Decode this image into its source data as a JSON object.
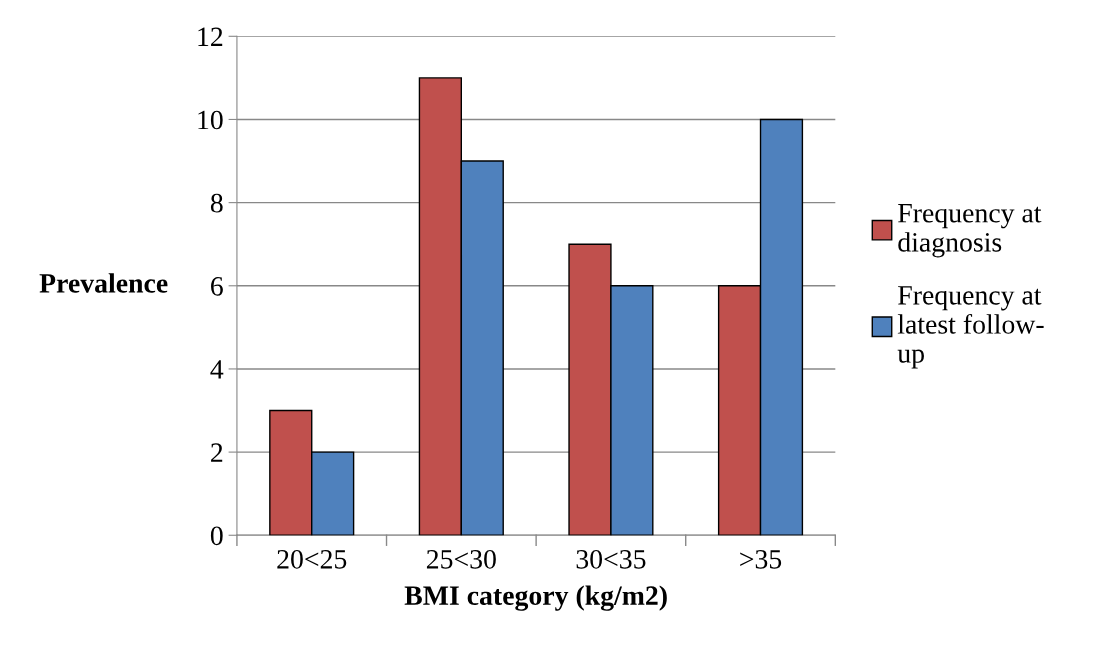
{
  "chart_data": {
    "type": "bar",
    "xlabel": "BMI category (kg/m2)",
    "ylabel": "Prevalence",
    "categories": [
      "20<25",
      "25<30",
      "30<35",
      ">35"
    ],
    "series": [
      {
        "name": "Frequency at\ndiagnosis",
        "color": "#c0504d",
        "values": [
          3,
          11,
          7,
          6
        ]
      },
      {
        "name": "Frequency at\nlatest follow-\nup",
        "color": "#4f81bd",
        "values": [
          2,
          9,
          6,
          10
        ]
      }
    ],
    "ylim": [
      0,
      12
    ],
    "yticks": [
      0,
      2,
      4,
      6,
      8,
      10,
      12
    ],
    "grid": "y",
    "legend": "right"
  }
}
